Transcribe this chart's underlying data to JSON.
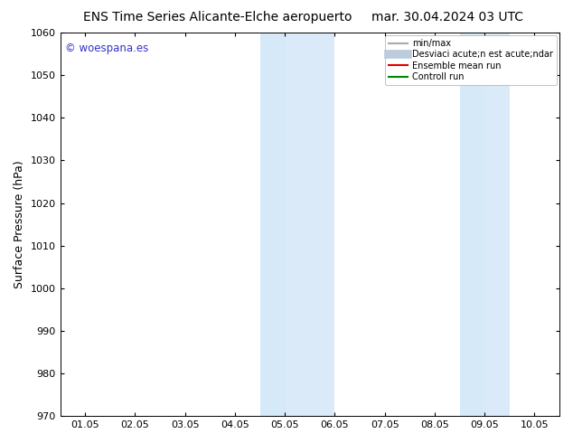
{
  "title_left": "ENS Time Series Alicante-Elche aeropuerto",
  "title_right": "mar. 30.04.2024 03 UTC",
  "ylabel": "Surface Pressure (hPa)",
  "watermark": "© woespana.es",
  "ylim": [
    970,
    1060
  ],
  "yticks": [
    970,
    980,
    990,
    1000,
    1010,
    1020,
    1030,
    1040,
    1050,
    1060
  ],
  "xtick_labels": [
    "01.05",
    "02.05",
    "03.05",
    "04.05",
    "05.05",
    "06.05",
    "07.05",
    "08.05",
    "09.05",
    "10.05"
  ],
  "num_xticks": 10,
  "xlim": [
    0,
    9
  ],
  "shaded_regions": [
    {
      "xmin": 3.5,
      "xmax": 4.0,
      "color": "#d6e9f8"
    },
    {
      "xmin": 4.0,
      "xmax": 5.0,
      "color": "#daeaf8"
    },
    {
      "xmin": 7.5,
      "xmax": 8.0,
      "color": "#d6e9f8"
    },
    {
      "xmin": 8.0,
      "xmax": 8.5,
      "color": "#daeaf8"
    }
  ],
  "legend_entries": [
    {
      "label": "min/max",
      "color": "#aaaaaa",
      "lw": 1.5
    },
    {
      "label": "Desviaci acute;n est acute;ndar",
      "color": "#bbccdd",
      "lw": 7
    },
    {
      "label": "Ensemble mean run",
      "color": "#dd0000",
      "lw": 1.5
    },
    {
      "label": "Controll run",
      "color": "#008800",
      "lw": 1.5
    }
  ],
  "background_color": "#ffffff",
  "title_fontsize": 10,
  "axis_fontsize": 8,
  "ylabel_fontsize": 9,
  "watermark_color": "#3333cc",
  "watermark_fontsize": 8.5
}
